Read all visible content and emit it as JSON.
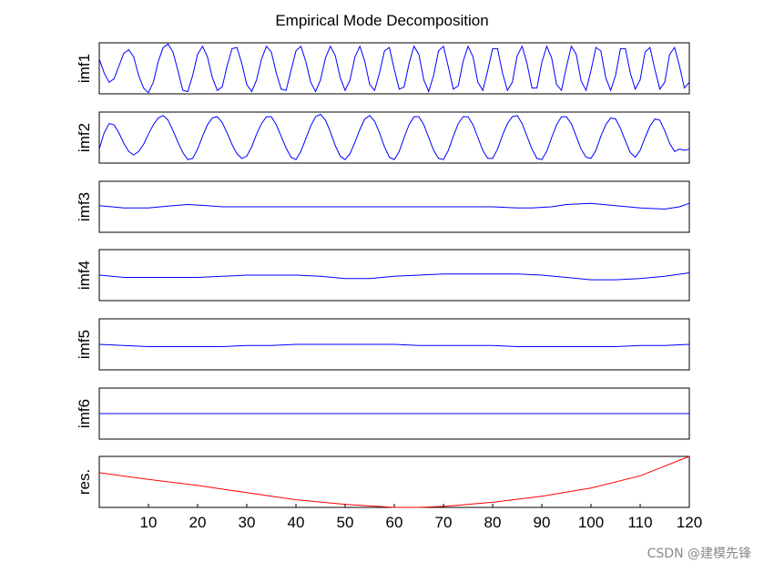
{
  "chart_data": {
    "type": "line",
    "title": "Empirical Mode Decomposition",
    "xlim": [
      0,
      120
    ],
    "x_ticks": [
      "10",
      "20",
      "30",
      "40",
      "50",
      "60",
      "70",
      "80",
      "90",
      "100",
      "110",
      "120"
    ],
    "grid": false,
    "panels": [
      {
        "label": "imf1",
        "color": "#0000ff",
        "ylim": [
          -1.1,
          1.1
        ],
        "x": [
          0,
          1,
          2,
          3,
          4,
          5,
          6,
          7,
          8,
          9,
          10,
          11,
          12,
          13,
          14,
          15,
          16,
          17,
          18,
          19,
          20,
          21,
          22,
          23,
          24,
          25,
          26,
          27,
          28,
          29,
          30,
          31,
          32,
          33,
          34,
          35,
          36,
          37,
          38,
          39,
          40,
          41,
          42,
          43,
          44,
          45,
          46,
          47,
          48,
          49,
          50,
          51,
          52,
          53,
          54,
          55,
          56,
          57,
          58,
          59,
          60,
          61,
          62,
          63,
          64,
          65,
          66,
          67,
          68,
          69,
          70,
          71,
          72,
          73,
          74,
          75,
          76,
          77,
          78,
          79,
          80,
          81,
          82,
          83,
          84,
          85,
          86,
          87,
          88,
          89,
          90,
          91,
          92,
          93,
          94,
          95,
          96,
          97,
          98,
          99,
          100,
          101,
          102,
          103,
          104,
          105,
          106,
          107,
          108,
          109,
          110,
          111,
          112,
          113,
          114,
          115,
          116,
          117,
          118,
          119,
          120
        ],
        "values": [
          0.4,
          -0.2,
          -0.6,
          -0.45,
          0.1,
          0.65,
          0.8,
          0.5,
          -0.3,
          -0.85,
          -1.05,
          -0.6,
          0.3,
          0.9,
          1.05,
          0.7,
          -0.1,
          -0.95,
          -1.0,
          -0.3,
          0.6,
          0.95,
          0.5,
          -0.4,
          -0.95,
          -0.8,
          0.1,
          0.85,
          0.9,
          0.2,
          -0.7,
          -1.0,
          -0.5,
          0.4,
          0.95,
          0.7,
          -0.2,
          -0.9,
          -0.95,
          -0.1,
          0.75,
          0.95,
          0.3,
          -0.6,
          -1.0,
          -0.5,
          0.45,
          0.95,
          0.55,
          -0.4,
          -0.95,
          -0.5,
          0.5,
          0.95,
          0.3,
          -0.7,
          -0.95,
          -0.2,
          0.75,
          0.9,
          -0.05,
          -0.9,
          -0.8,
          0.2,
          0.95,
          0.6,
          -0.5,
          -1.0,
          -0.3,
          0.75,
          0.95,
          0.05,
          -0.9,
          -0.75,
          0.3,
          0.95,
          0.5,
          -0.6,
          -0.95,
          -0.1,
          0.85,
          0.85,
          -0.2,
          -0.95,
          -0.6,
          0.55,
          0.95,
          0.2,
          -0.85,
          -0.85,
          0.25,
          0.95,
          0.45,
          -0.7,
          -0.95,
          0.05,
          0.95,
          0.6,
          -0.55,
          -0.95,
          -0.1,
          0.9,
          0.75,
          -0.4,
          -0.95,
          -0.3,
          0.85,
          0.85,
          -0.2,
          -0.9,
          -0.5,
          0.7,
          0.9,
          -0.05,
          -0.9,
          -0.6,
          0.6,
          0.9,
          0.1,
          -0.85,
          -0.6
        ]
      },
      {
        "label": "imf2",
        "color": "#0000ff",
        "ylim": [
          -1.1,
          1.1
        ],
        "x": [
          0,
          1,
          2,
          3,
          4,
          5,
          6,
          7,
          8,
          9,
          10,
          11,
          12,
          13,
          14,
          15,
          16,
          17,
          18,
          19,
          20,
          21,
          22,
          23,
          24,
          25,
          26,
          27,
          28,
          29,
          30,
          31,
          32,
          33,
          34,
          35,
          36,
          37,
          38,
          39,
          40,
          41,
          42,
          43,
          44,
          45,
          46,
          47,
          48,
          49,
          50,
          51,
          52,
          53,
          54,
          55,
          56,
          57,
          58,
          59,
          60,
          61,
          62,
          63,
          64,
          65,
          66,
          67,
          68,
          69,
          70,
          71,
          72,
          73,
          74,
          75,
          76,
          77,
          78,
          79,
          80,
          81,
          82,
          83,
          84,
          85,
          86,
          87,
          88,
          89,
          90,
          91,
          92,
          93,
          94,
          95,
          96,
          97,
          98,
          99,
          100,
          101,
          102,
          103,
          104,
          105,
          106,
          107,
          108,
          109,
          110,
          111,
          112,
          113,
          114,
          115,
          116,
          117,
          118,
          119,
          120
        ],
        "values": [
          -0.5,
          0.2,
          0.6,
          0.55,
          0.2,
          -0.25,
          -0.6,
          -0.75,
          -0.6,
          -0.3,
          0.15,
          0.55,
          0.85,
          0.95,
          0.75,
          0.3,
          -0.2,
          -0.65,
          -0.95,
          -0.9,
          -0.5,
          0.05,
          0.55,
          0.85,
          0.9,
          0.65,
          0.2,
          -0.3,
          -0.7,
          -0.9,
          -0.8,
          -0.4,
          0.15,
          0.6,
          0.9,
          0.9,
          0.55,
          0.05,
          -0.45,
          -0.85,
          -0.95,
          -0.6,
          -0.05,
          0.5,
          0.9,
          1.0,
          0.75,
          0.25,
          -0.35,
          -0.8,
          -0.95,
          -0.7,
          -0.2,
          0.35,
          0.8,
          0.95,
          0.7,
          0.2,
          -0.4,
          -0.85,
          -0.95,
          -0.6,
          0.0,
          0.55,
          0.9,
          0.9,
          0.55,
          0.0,
          -0.55,
          -0.9,
          -0.95,
          -0.55,
          0.05,
          0.6,
          0.9,
          0.9,
          0.55,
          0.0,
          -0.55,
          -0.9,
          -0.9,
          -0.5,
          0.1,
          0.6,
          0.9,
          0.95,
          0.6,
          0.05,
          -0.5,
          -0.9,
          -0.95,
          -0.6,
          0.0,
          0.55,
          0.9,
          0.9,
          0.6,
          0.05,
          -0.5,
          -0.85,
          -0.9,
          -0.55,
          0.05,
          0.55,
          0.85,
          0.8,
          0.4,
          -0.15,
          -0.65,
          -0.85,
          -0.55,
          0.0,
          0.5,
          0.8,
          0.75,
          0.3,
          -0.25,
          -0.6,
          -0.5,
          -0.55,
          -0.5
        ]
      },
      {
        "label": "imf3",
        "color": "#0000ff",
        "ylim": [
          -1.1,
          1.1
        ],
        "x": [
          0,
          5,
          10,
          15,
          18,
          22,
          25,
          30,
          35,
          40,
          45,
          50,
          55,
          60,
          65,
          70,
          75,
          80,
          85,
          88,
          92,
          95,
          100,
          105,
          110,
          115,
          118,
          120
        ],
        "values": [
          0.05,
          -0.05,
          -0.05,
          0.05,
          0.1,
          0.05,
          0.0,
          0.0,
          0.0,
          0.0,
          0.0,
          0.0,
          0.0,
          0.0,
          0.0,
          0.0,
          0.0,
          0.0,
          -0.05,
          -0.05,
          0.0,
          0.1,
          0.15,
          0.05,
          -0.05,
          -0.1,
          0.0,
          0.15
        ]
      },
      {
        "label": "imf4",
        "color": "#0000ff",
        "ylim": [
          -1.1,
          1.1
        ],
        "x": [
          0,
          5,
          10,
          15,
          20,
          25,
          30,
          35,
          40,
          45,
          50,
          55,
          60,
          65,
          70,
          75,
          80,
          85,
          90,
          95,
          100,
          105,
          110,
          115,
          120
        ],
        "values": [
          0.0,
          -0.1,
          -0.1,
          -0.1,
          -0.1,
          -0.05,
          0.0,
          0.0,
          0.0,
          -0.05,
          -0.15,
          -0.15,
          -0.05,
          0.0,
          0.05,
          0.05,
          0.05,
          0.05,
          0.0,
          -0.1,
          -0.2,
          -0.2,
          -0.15,
          -0.05,
          0.1
        ]
      },
      {
        "label": "imf5",
        "color": "#0000ff",
        "ylim": [
          -1.1,
          1.1
        ],
        "x": [
          0,
          5,
          10,
          15,
          20,
          25,
          30,
          35,
          40,
          45,
          50,
          55,
          60,
          65,
          70,
          75,
          80,
          85,
          90,
          95,
          100,
          105,
          110,
          115,
          120
        ],
        "values": [
          0.0,
          -0.05,
          -0.1,
          -0.1,
          -0.1,
          -0.1,
          -0.05,
          -0.05,
          0.0,
          0.0,
          0.0,
          0.0,
          0.0,
          -0.05,
          -0.05,
          -0.05,
          -0.05,
          -0.1,
          -0.1,
          -0.1,
          -0.1,
          -0.1,
          -0.05,
          -0.05,
          0.0
        ]
      },
      {
        "label": "imf6",
        "color": "#0000ff",
        "ylim": [
          -1.1,
          1.1
        ],
        "x": [
          0,
          120
        ],
        "values": [
          0,
          0
        ]
      },
      {
        "label": "res.",
        "color": "#ff0000",
        "ylim": [
          0,
          1
        ],
        "x": [
          0,
          10,
          20,
          30,
          40,
          50,
          60,
          65,
          70,
          80,
          90,
          100,
          110,
          120
        ],
        "values": [
          0.68,
          0.55,
          0.43,
          0.29,
          0.15,
          0.06,
          0.0,
          0.0,
          0.02,
          0.1,
          0.22,
          0.38,
          0.62,
          1.0
        ]
      }
    ]
  },
  "footer": {
    "watermark": "CSDN @建模先锋"
  }
}
